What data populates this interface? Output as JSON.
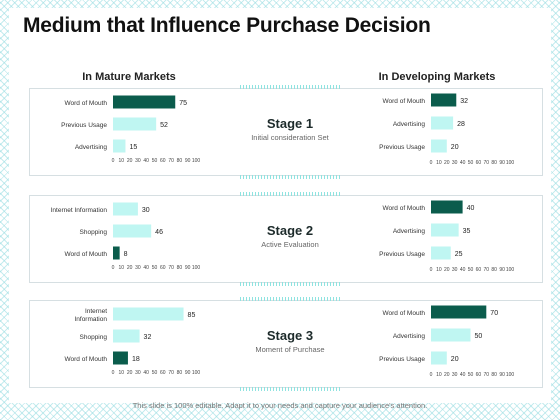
{
  "title": "Medium that Influence Purchase Decision",
  "left_heading": "In Mature Markets",
  "right_heading": "In Developing Markets",
  "footer": "This slide is 100% editable. Adapt it to your needs and capture your audience's attention.",
  "colors": {
    "dark": "#0b5c4c",
    "light": "#bff6f2",
    "accent_border": "#8fe3e0"
  },
  "stages": [
    {
      "title": "Stage 1",
      "subtitle": "Initial consideration Set"
    },
    {
      "title": "Stage 2",
      "subtitle": "Active Evaluation"
    },
    {
      "title": "Stage 3",
      "subtitle": "Moment of Purchase"
    }
  ],
  "chart_data": [
    {
      "type": "bar",
      "orientation": "horizontal",
      "panel": "stage-1-mature",
      "categories": [
        "Word of Mouth",
        "Previous Usage",
        "Advertising"
      ],
      "values": [
        75,
        52,
        15
      ],
      "highlight": [
        true,
        false,
        false
      ],
      "xlim": [
        0,
        100
      ],
      "xticks": [
        "0",
        "10",
        "20",
        "30",
        "40",
        "50",
        "60",
        "70",
        "80",
        "90",
        "100"
      ]
    },
    {
      "type": "bar",
      "orientation": "horizontal",
      "panel": "stage-1-developing",
      "categories": [
        "Word of Mouth",
        "Advertising",
        "Previous Usage"
      ],
      "values": [
        32,
        28,
        20
      ],
      "highlight": [
        true,
        false,
        false
      ],
      "xlim": [
        0,
        100
      ],
      "xticks": [
        "0",
        "10",
        "20",
        "30",
        "40",
        "50",
        "60",
        "70",
        "80",
        "90",
        "100"
      ]
    },
    {
      "type": "bar",
      "orientation": "horizontal",
      "panel": "stage-2-mature",
      "categories": [
        "Internet Information",
        "Shopping",
        "Word of Mouth"
      ],
      "values": [
        30,
        46,
        8
      ],
      "highlight": [
        false,
        false,
        true
      ],
      "xlim": [
        0,
        100
      ],
      "xticks": [
        "0",
        "10",
        "20",
        "30",
        "40",
        "50",
        "60",
        "70",
        "80",
        "90",
        "100"
      ]
    },
    {
      "type": "bar",
      "orientation": "horizontal",
      "panel": "stage-2-developing",
      "categories": [
        "Word of Mouth",
        "Advertising",
        "Previous Usage"
      ],
      "values": [
        40,
        35,
        25
      ],
      "highlight": [
        true,
        false,
        false
      ],
      "xlim": [
        0,
        100
      ],
      "xticks": [
        "0",
        "10",
        "20",
        "30",
        "40",
        "50",
        "60",
        "70",
        "80",
        "90",
        "100"
      ]
    },
    {
      "type": "bar",
      "orientation": "horizontal",
      "panel": "stage-3-mature",
      "categories": [
        "Internet Information",
        "Shopping",
        "Word of Mouth"
      ],
      "values": [
        85,
        32,
        18
      ],
      "highlight": [
        false,
        false,
        true
      ],
      "xlim": [
        0,
        100
      ],
      "xticks": [
        "0",
        "10",
        "20",
        "30",
        "40",
        "50",
        "60",
        "70",
        "80",
        "90",
        "100"
      ]
    },
    {
      "type": "bar",
      "orientation": "horizontal",
      "panel": "stage-3-developing",
      "categories": [
        "Word of Mouth",
        "Advertising",
        "Previous Usage"
      ],
      "values": [
        70,
        50,
        20
      ],
      "highlight": [
        true,
        false,
        false
      ],
      "xlim": [
        0,
        100
      ],
      "xticks": [
        "0",
        "10",
        "20",
        "30",
        "40",
        "50",
        "60",
        "70",
        "80",
        "90",
        "100"
      ]
    }
  ]
}
